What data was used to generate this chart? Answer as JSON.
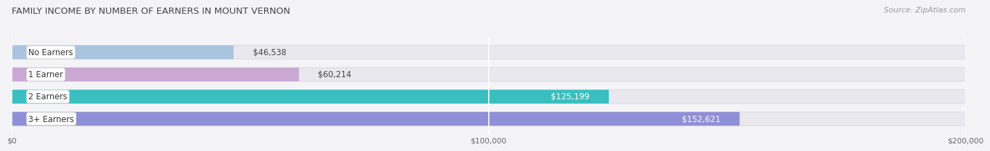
{
  "title": "FAMILY INCOME BY NUMBER OF EARNERS IN MOUNT VERNON",
  "source": "Source: ZipAtlas.com",
  "categories": [
    "No Earners",
    "1 Earner",
    "2 Earners",
    "3+ Earners"
  ],
  "values": [
    46538,
    60214,
    125199,
    152621
  ],
  "labels": [
    "$46,538",
    "$60,214",
    "$125,199",
    "$152,621"
  ],
  "bar_colors": [
    "#aac4e0",
    "#c9a8d4",
    "#39bfbf",
    "#9090d8"
  ],
  "track_color": "#e8e8ee",
  "xlim": [
    0,
    200000
  ],
  "xtick_labels": [
    "$0",
    "$100,000",
    "$200,000"
  ],
  "fig_bg_color": "#f4f4f6",
  "bar_height": 0.62,
  "title_fontsize": 9.5,
  "source_fontsize": 8,
  "label_fontsize": 8.5,
  "category_fontsize": 8.5
}
